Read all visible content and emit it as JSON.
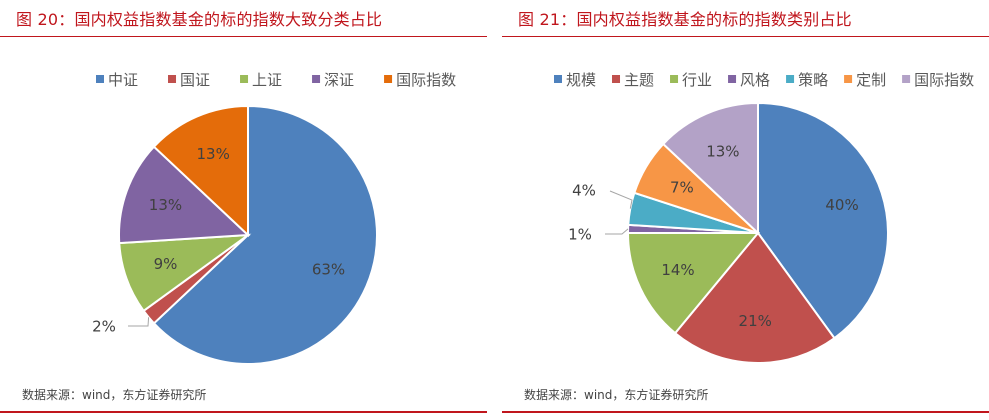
{
  "figure20": {
    "title": "图 20：国内权益指数基金的标的指数大致分类占比",
    "source": "数据来源：wind，东方证券研究所"
  },
  "figure21": {
    "title": "图 21：国内权益指数基金的标的指数类别占比",
    "source": "数据来源：wind，东方证券研究所"
  },
  "chart_data": [
    {
      "type": "pie",
      "title": "图 20：国内权益指数基金的标的指数大致分类占比",
      "legend_position": "top",
      "categories": [
        "中证",
        "国证",
        "上证",
        "深证",
        "国际指数"
      ],
      "values": [
        63,
        2,
        9,
        13,
        13
      ],
      "labels": [
        "63%",
        "2%",
        "9%",
        "13%",
        "13%"
      ],
      "colors": [
        "#4e81bd",
        "#c0504d",
        "#9bbb59",
        "#8064a2",
        "#e46c0a"
      ]
    },
    {
      "type": "pie",
      "title": "图 21：国内权益指数基金的标的指数类别占比",
      "legend_position": "top",
      "categories": [
        "规模",
        "主题",
        "行业",
        "风格",
        "策略",
        "定制",
        "国际指数"
      ],
      "values": [
        40,
        21,
        14,
        1,
        4,
        7,
        13
      ],
      "labels": [
        "40%",
        "21%",
        "14%",
        "1%",
        "4%",
        "7%",
        "13%"
      ],
      "colors": [
        "#4e81bd",
        "#c0504d",
        "#9bbb59",
        "#8064a2",
        "#4bacc6",
        "#f79646",
        "#b3a2c7"
      ]
    }
  ]
}
